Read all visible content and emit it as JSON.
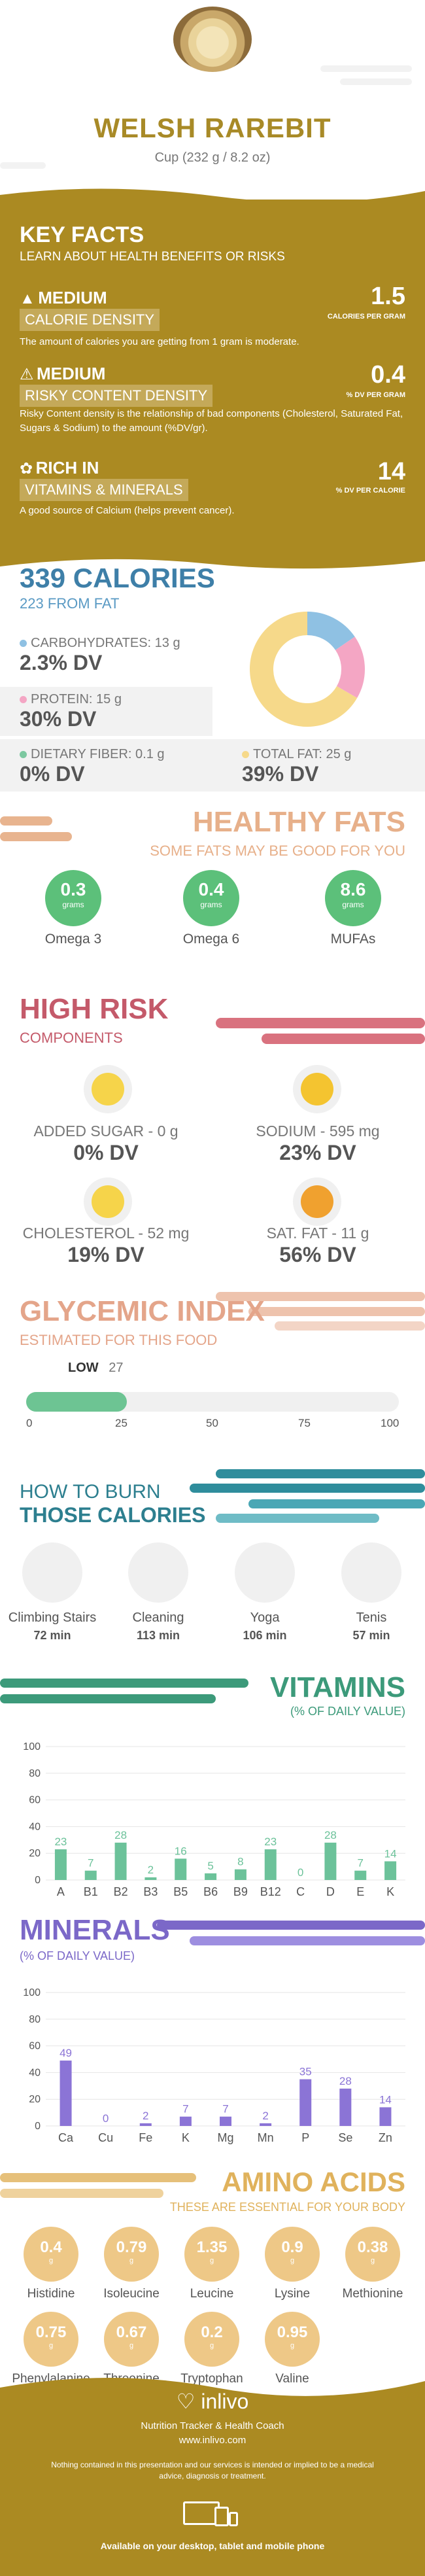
{
  "header": {
    "title": "WELSH RAREBIT",
    "serving": "Cup (232 g / 8.2 oz)"
  },
  "key_facts": {
    "title": "KEY FACTS",
    "subtitle": "LEARN ABOUT HEALTH BENEFITS OR RISKS",
    "rows": [
      {
        "level": "MEDIUM",
        "name": "CALORIE DENSITY",
        "desc": "The amount of calories you are getting from 1 gram is moderate.",
        "value": "1.5",
        "unit": "CALORIES PER GRAM",
        "icon": "flame-icon"
      },
      {
        "level": "MEDIUM",
        "name": "RISKY CONTENT DENSITY",
        "desc": "Risky Content density is the relationship of bad components (Cholesterol, Saturated Fat, Sugars & Sodium) to the amount (%DV/gr).",
        "value": "0.4",
        "unit": "% DV PER GRAM",
        "icon": "warning-icon"
      },
      {
        "level": "RICH IN",
        "name": "VITAMINS & MINERALS",
        "desc": "A good source of Calcium (helps prevent cancer).",
        "value": "14",
        "unit": "% DV PER CALORIE",
        "icon": "leaf-icon"
      }
    ]
  },
  "calories": {
    "title": "339 CALORIES",
    "subtitle": "223 FROM FAT",
    "macros": [
      {
        "label": "CARBOHYDRATES: 13 g",
        "dv": "2.3% DV",
        "color": "#8fc1e3"
      },
      {
        "label": "PROTEIN: 15 g",
        "dv": "30% DV",
        "color": "#f4a6c4"
      },
      {
        "label": "DIETARY FIBER: 0.1 g",
        "dv": "0% DV",
        "color": "#7cc8a0"
      },
      {
        "label": "TOTAL FAT: 25 g",
        "dv": "39% DV",
        "color": "#f6d98a"
      }
    ],
    "donut": [
      {
        "name": "carbohydrates",
        "value": 13,
        "color": "#8fc1e3"
      },
      {
        "name": "protein",
        "value": 15,
        "color": "#f4a6c4"
      },
      {
        "name": "fat",
        "value": 56,
        "color": "#f6d98a"
      }
    ]
  },
  "healthy_fats": {
    "title": "HEALTHY FATS",
    "subtitle": "SOME FATS MAY BE GOOD FOR YOU",
    "items": [
      {
        "value": "0.3",
        "unit": "grams",
        "name": "Omega 3"
      },
      {
        "value": "0.4",
        "unit": "grams",
        "name": "Omega 6"
      },
      {
        "value": "8.6",
        "unit": "grams",
        "name": "MUFAs"
      }
    ]
  },
  "high_risk": {
    "title": "HIGH RISK",
    "subtitle": "COMPONENTS",
    "items": [
      {
        "label": "ADDED SUGAR - 0 g",
        "dv": "0% DV",
        "mood": "happy",
        "color": "#f6d44a"
      },
      {
        "label": "SODIUM - 595 mg",
        "dv": "23% DV",
        "mood": "smile",
        "color": "#f4c430"
      },
      {
        "label": "CHOLESTEROL - 52 mg",
        "dv": "19% DV",
        "mood": "smile",
        "color": "#f6d44a"
      },
      {
        "label": "SAT. FAT - 11 g",
        "dv": "56% DV",
        "mood": "sad",
        "color": "#f0a12f"
      }
    ]
  },
  "glycemic": {
    "title": "GLYCEMIC INDEX",
    "subtitle": "ESTIMATED FOR THIS FOOD",
    "level_label": "LOW",
    "value": "27",
    "ticks": [
      "0",
      "25",
      "50",
      "75",
      "100"
    ]
  },
  "burn": {
    "title1": "HOW TO BURN",
    "title2": "THOSE CALORIES",
    "items": [
      {
        "name": "Climbing Stairs",
        "minutes": "72 min",
        "icon": "stairs-icon"
      },
      {
        "name": "Cleaning",
        "minutes": "113 min",
        "icon": "broom-icon"
      },
      {
        "name": "Yoga",
        "minutes": "106 min",
        "icon": "yoga-icon"
      },
      {
        "name": "Tenis",
        "minutes": "57 min",
        "icon": "tennis-icon"
      }
    ]
  },
  "vitamins": {
    "title": "VITAMINS",
    "subtitle": "(% OF DAILY VALUE)"
  },
  "minerals": {
    "title": "MINERALS",
    "subtitle": "(% OF DAILY VALUE)"
  },
  "chart_data": [
    {
      "type": "bar",
      "categories": [
        "A",
        "B1",
        "B2",
        "B3",
        "B5",
        "B6",
        "B9",
        "B12",
        "C",
        "D",
        "E",
        "K"
      ],
      "values": [
        23,
        7,
        28,
        2,
        16,
        5,
        8,
        23,
        0,
        28,
        7,
        14
      ],
      "yticks": [
        0,
        20,
        40,
        60,
        80,
        100
      ],
      "ylim": [
        0,
        100
      ],
      "color": "#6cc29a",
      "grid": true
    },
    {
      "type": "bar",
      "categories": [
        "Ca",
        "Cu",
        "Fe",
        "K",
        "Mg",
        "Mn",
        "P",
        "Se",
        "Zn"
      ],
      "values": [
        49,
        0,
        2,
        7,
        7,
        2,
        35,
        28,
        14
      ],
      "yticks": [
        0,
        20,
        40,
        60,
        80,
        100
      ],
      "ylim": [
        0,
        100
      ],
      "color": "#8b74d6",
      "grid": true
    }
  ],
  "amino": {
    "title": "AMINO ACIDS",
    "subtitle": "THESE ARE ESSENTIAL FOR YOUR BODY",
    "unit": "g",
    "items": [
      {
        "value": "0.4",
        "name": "Histidine"
      },
      {
        "value": "0.79",
        "name": "Isoleucine"
      },
      {
        "value": "1.35",
        "name": "Leucine"
      },
      {
        "value": "0.9",
        "name": "Lysine"
      },
      {
        "value": "0.38",
        "name": "Methionine"
      },
      {
        "value": "0.75",
        "name": "Phenylalanine"
      },
      {
        "value": "0.67",
        "name": "Threonine"
      },
      {
        "value": "0.2",
        "name": "Tryptophan"
      },
      {
        "value": "0.95",
        "name": "Valine"
      }
    ]
  },
  "footer": {
    "brand": "inlivo",
    "tagline": "Nutrition Tracker & Health Coach",
    "site": "www.inlivo.com",
    "disclaimer": "Nothing contained in this presentation and our services is intended or implied to be a medical advice, diagnosis or treatment.",
    "devices": "Available on your desktop, tablet and mobile phone"
  }
}
